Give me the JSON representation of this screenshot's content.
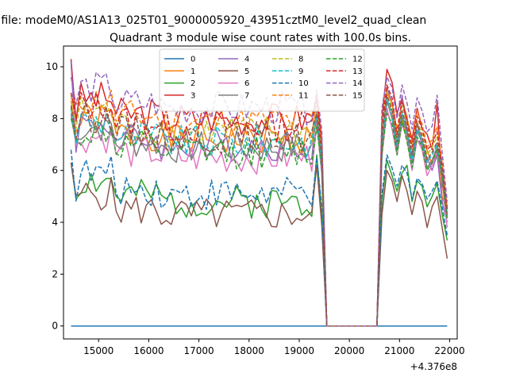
{
  "figure": {
    "suptitle": "n file: modeM0/AS1A13_025T01_9000005920_43951cztM0_level2_quad_clean"
  },
  "chart_data": {
    "type": "line",
    "title": "Quadrant 3 module wise count rates with 100.0s bins.",
    "xlabel": "",
    "ylabel": "",
    "x_offset_label": "+4.376e8",
    "xlim": [
      14300,
      22150
    ],
    "ylim": [
      -0.5,
      10.8
    ],
    "xticks": [
      15000,
      16000,
      17000,
      18000,
      19000,
      20000,
      21000,
      22000
    ],
    "yticks": [
      0,
      2,
      4,
      6,
      8,
      10
    ],
    "x": [
      14450,
      14550,
      14650,
      14750,
      14850,
      14950,
      15050,
      15150,
      15250,
      15350,
      15450,
      15550,
      15650,
      15750,
      15850,
      15950,
      16050,
      16150,
      16250,
      16350,
      16450,
      16550,
      16650,
      16750,
      16850,
      16950,
      17050,
      17150,
      17250,
      17350,
      17450,
      17550,
      17650,
      17750,
      17850,
      17950,
      18050,
      18150,
      18250,
      18350,
      18450,
      18550,
      18650,
      18750,
      18850,
      18950,
      19050,
      19150,
      19250,
      19350,
      19450,
      19550,
      19650,
      19750,
      19850,
      19950,
      20050,
      20150,
      20250,
      20350,
      20450,
      20550,
      20650,
      20750,
      20850,
      20950,
      21050,
      21150,
      21250,
      21350,
      21450,
      21550,
      21650,
      21750,
      21850,
      21950
    ],
    "gap": {
      "start": 19550,
      "end": 20550
    },
    "legend": {
      "placement": "upper center",
      "ncol": 4
    },
    "series": [
      {
        "name": "0",
        "color": "#1f77b4",
        "dash": "solid",
        "values": [
          0,
          0,
          0,
          0,
          0,
          0,
          0,
          0,
          0,
          0,
          0,
          0,
          0,
          0,
          0,
          0,
          0,
          0,
          0,
          0,
          0,
          0,
          0,
          0,
          0,
          0,
          0,
          0,
          0,
          0,
          0,
          0,
          0,
          0,
          0,
          0,
          0,
          0,
          0,
          0,
          0,
          0,
          0,
          0,
          0,
          0,
          0,
          0,
          0,
          0,
          0,
          0,
          0,
          0,
          0,
          0,
          0,
          0,
          0,
          0,
          0,
          0,
          0,
          0,
          0,
          0,
          0,
          0,
          0,
          0,
          0,
          0,
          0,
          0,
          0,
          0
        ]
      },
      {
        "name": "1",
        "color": "#ff7f0e",
        "dash": "solid",
        "base": 7.2,
        "start": 8.7,
        "spike": 9.0,
        "post": [
          8.6,
          8.3,
          7.4,
          8.0,
          7.2,
          6.6,
          7.8,
          7.0,
          6.8,
          6.2,
          6.9,
          5.0,
          4.4
        ],
        "seed": 1
      },
      {
        "name": "2",
        "color": "#2ca02c",
        "dash": "solid",
        "base": 4.8,
        "start": 6.3,
        "spike": 6.6,
        "post": [
          6.4,
          5.8,
          5.2,
          5.9,
          6.2,
          4.8,
          5.6,
          5.4,
          4.6,
          5.0,
          5.5,
          4.3,
          3.3
        ],
        "seed": 2
      },
      {
        "name": "3",
        "color": "#d62728",
        "dash": "solid",
        "base": 8.0,
        "start": 10.3,
        "spike": 8.8,
        "post": [
          9.9,
          9.4,
          8.2,
          8.8,
          8.0,
          7.2,
          8.4,
          7.6,
          7.4,
          6.8,
          8.6,
          5.4,
          4.6
        ],
        "seed": 3
      },
      {
        "name": "4",
        "color": "#9467bd",
        "dash": "solid",
        "base": 7.0,
        "start": 10.2,
        "spike": 8.5,
        "post": [
          9.2,
          8.6,
          7.0,
          8.9,
          7.6,
          6.4,
          7.9,
          6.9,
          6.5,
          6.0,
          6.6,
          4.8,
          4.0
        ],
        "seed": 4
      },
      {
        "name": "5",
        "color": "#8c564b",
        "dash": "solid",
        "base": 4.3,
        "start": 6.3,
        "spike": 6.2,
        "post": [
          6.0,
          5.6,
          4.8,
          5.8,
          5.2,
          4.3,
          5.2,
          4.8,
          3.8,
          4.6,
          5.0,
          3.8,
          2.6
        ],
        "seed": 5
      },
      {
        "name": "6",
        "color": "#e377c2",
        "dash": "solid",
        "base": 6.5,
        "start": 8.1,
        "spike": 7.8,
        "post": [
          8.4,
          7.6,
          6.6,
          7.8,
          7.2,
          6.0,
          7.2,
          6.8,
          5.8,
          6.2,
          6.7,
          5.6,
          3.8
        ],
        "seed": 6
      },
      {
        "name": "7",
        "color": "#7f7f7f",
        "dash": "solid",
        "base": 6.9,
        "start": 8.2,
        "spike": 8.0,
        "post": [
          8.7,
          8.0,
          6.8,
          8.1,
          7.4,
          6.3,
          7.5,
          7.1,
          6.1,
          6.4,
          6.9,
          5.8,
          4.2
        ],
        "seed": 7
      },
      {
        "name": "8",
        "color": "#bcbd22",
        "dash": "dashed",
        "base": 7.5,
        "start": 8.9,
        "spike": 8.4,
        "post": [
          9.1,
          8.4,
          7.2,
          8.5,
          7.8,
          6.7,
          7.9,
          7.4,
          6.6,
          6.9,
          7.3,
          6.0,
          4.4
        ],
        "seed": 8
      },
      {
        "name": "9",
        "color": "#17becf",
        "dash": "dashed",
        "base": 7.1,
        "start": 8.4,
        "spike": 8.1,
        "post": [
          8.8,
          8.1,
          7.0,
          8.2,
          7.5,
          6.4,
          7.6,
          7.2,
          6.3,
          6.6,
          7.0,
          5.9,
          4.3
        ],
        "seed": 9
      },
      {
        "name": "10",
        "color": "#1f77b4",
        "dash": "dashed",
        "base": 5.1,
        "start": 6.8,
        "spike": 6.5,
        "post": [
          6.6,
          6.1,
          5.4,
          6.2,
          5.9,
          4.9,
          5.7,
          5.5,
          4.9,
          5.2,
          5.6,
          4.6,
          3.5
        ],
        "seed": 10
      },
      {
        "name": "11",
        "color": "#ff7f0e",
        "dash": "dashed",
        "base": 7.9,
        "start": 8.8,
        "spike": 8.6,
        "post": [
          9.0,
          8.6,
          7.6,
          8.7,
          8.1,
          7.0,
          8.3,
          7.8,
          6.9,
          7.2,
          7.7,
          6.3,
          4.6
        ],
        "seed": 11
      },
      {
        "name": "12",
        "color": "#2ca02c",
        "dash": "dashed",
        "base": 6.7,
        "start": 8.0,
        "spike": 7.7,
        "post": [
          8.2,
          7.8,
          6.6,
          7.9,
          7.1,
          6.1,
          7.3,
          6.9,
          6.0,
          6.3,
          6.8,
          5.7,
          4.1
        ],
        "seed": 12
      },
      {
        "name": "13",
        "color": "#d62728",
        "dash": "dashed",
        "base": 7.7,
        "start": 9.0,
        "spike": 8.7,
        "post": [
          9.3,
          8.8,
          7.4,
          8.7,
          7.9,
          6.9,
          8.1,
          7.6,
          6.8,
          7.0,
          7.5,
          6.2,
          4.5
        ],
        "seed": 13
      },
      {
        "name": "14",
        "color": "#9467bd",
        "dash": "dashed",
        "base": 8.4,
        "start": 9.6,
        "spike": 9.1,
        "post": [
          9.6,
          9.2,
          8.0,
          9.3,
          8.6,
          7.6,
          8.8,
          8.3,
          7.5,
          7.7,
          8.9,
          6.7,
          4.8
        ],
        "seed": 14
      },
      {
        "name": "15",
        "color": "#8c564b",
        "dash": "dashed",
        "base": 7.3,
        "start": 8.5,
        "spike": 8.2,
        "post": [
          8.9,
          8.3,
          7.1,
          8.3,
          7.6,
          6.6,
          7.8,
          7.3,
          6.4,
          6.7,
          7.1,
          6.0,
          4.3
        ],
        "seed": 15
      }
    ]
  }
}
